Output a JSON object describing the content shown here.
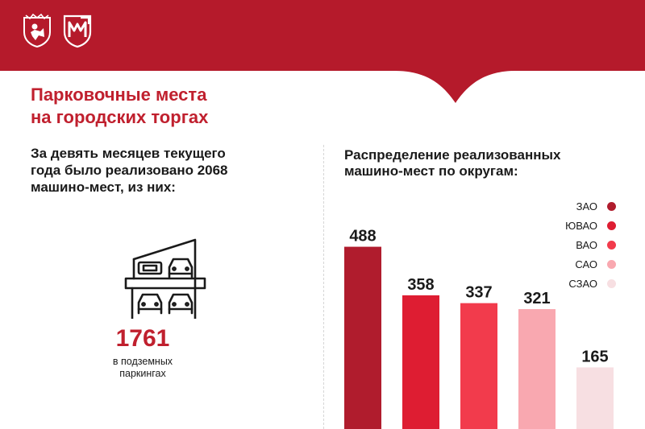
{
  "header": {
    "background": "#b51a2b",
    "logos": [
      "moscow-crest-icon",
      "mos-logo-icon"
    ]
  },
  "title": {
    "line1": "Парковочные места",
    "line2": "на городских торгах"
  },
  "summary": {
    "line1": "За девять месяцев текущего",
    "line2": "года было реализовано 2068",
    "line3": "машино-мест, из них:"
  },
  "highlight": {
    "icon": "parking-garage-icon",
    "value": "1761",
    "caption_line1": "в подземных",
    "caption_line2": "паркингах"
  },
  "chart_data": {
    "type": "bar",
    "title_line1": "Распределение реализованных",
    "title_line2": "машино-мест по округам:",
    "categories": [
      "ЗАО",
      "ЮВАО",
      "ВАО",
      "САО",
      "СЗАО"
    ],
    "values": [
      488,
      358,
      337,
      321,
      165
    ],
    "colors": [
      "#b01c2d",
      "#de1d32",
      "#f23b4c",
      "#f9a8b0",
      "#f7dfe2"
    ],
    "value_labels": [
      "488",
      "358",
      "337",
      "321",
      "165"
    ],
    "legend_placement": "top-right",
    "grid": false,
    "ylim": [
      0,
      600
    ]
  }
}
